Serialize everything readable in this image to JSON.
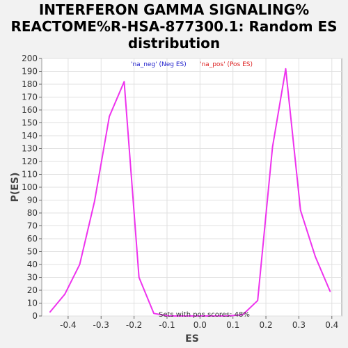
{
  "chart_data": {
    "type": "line",
    "title_lines": [
      "INTERFERON GAMMA SIGNALING%",
      "REACTOME%R-HSA-877300.1: Random ES",
      "distribution"
    ],
    "xlabel": "ES",
    "ylabel": "P(ES)",
    "xlim": [
      -0.48,
      0.43
    ],
    "ylim": [
      0,
      200
    ],
    "xticks": [
      -0.4,
      -0.3,
      -0.2,
      -0.1,
      0.0,
      0.1,
      0.2,
      0.3,
      0.4
    ],
    "xtick_labels": [
      "-0.4",
      "-0.3",
      "-0.2",
      "-0.1",
      "0.0",
      "0.1",
      "0.2",
      "0.3",
      "0.4"
    ],
    "yticks": [
      0,
      10,
      20,
      30,
      40,
      50,
      60,
      70,
      80,
      90,
      100,
      110,
      120,
      130,
      140,
      150,
      160,
      170,
      180,
      190,
      200
    ],
    "ytick_labels": [
      "0",
      "10",
      "20",
      "30",
      "40",
      "50",
      "60",
      "70",
      "80",
      "90",
      "100",
      "110",
      "120",
      "130",
      "140",
      "150",
      "160",
      "170",
      "180",
      "190",
      "200"
    ],
    "grid": true,
    "legend": [
      {
        "label": "'na_neg' (Neg ES)",
        "color": "#2222cc"
      },
      {
        "label": "'na_pos' (Pos ES)",
        "color": "#dd2222"
      }
    ],
    "annotation": "Sets with pos scores: 48%",
    "line_color": "#ee33ee",
    "series": [
      {
        "x": [
          -0.455,
          -0.41,
          -0.365,
          -0.32,
          -0.275,
          -0.23,
          -0.185,
          -0.14,
          -0.095,
          -0.05,
          -0.005,
          0.04,
          0.085,
          0.13,
          0.175,
          0.22,
          0.26,
          0.305,
          0.35,
          0.395
        ],
        "y": [
          3,
          17,
          40,
          89,
          155,
          182,
          30,
          2,
          0,
          0,
          0,
          0,
          0,
          1,
          12,
          131,
          192,
          82,
          46,
          19
        ]
      }
    ]
  }
}
